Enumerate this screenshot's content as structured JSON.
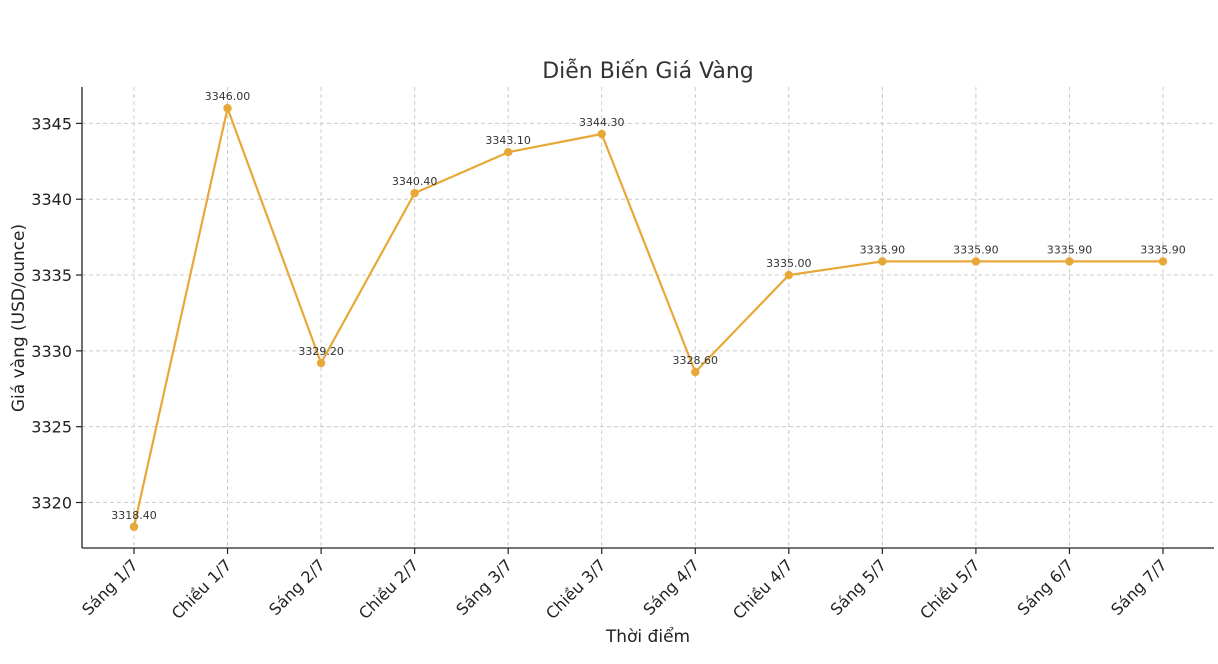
{
  "chart_data": {
    "type": "line",
    "title": "Diễn Biến Giá Vàng",
    "xlabel": "Thời điểm",
    "ylabel": "Giá vàng (USD/ounce)",
    "categories": [
      "Sáng 1/7",
      "Chiều 1/7",
      "Sáng 2/7",
      "Chiều 2/7",
      "Sáng 3/7",
      "Chiều 3/7",
      "Sáng 4/7",
      "Chiều 4/7",
      "Sáng 5/7",
      "Chiều 5/7",
      "Sáng 6/7",
      "Sáng 7/7"
    ],
    "series": [
      {
        "values": [
          3318.4,
          3346.0,
          3329.2,
          3340.4,
          3343.1,
          3344.3,
          3328.6,
          3335.0,
          3335.9,
          3335.9,
          3335.9,
          3335.9
        ],
        "data_labels": [
          "3318.40",
          "3346.00",
          "3329.20",
          "3340.40",
          "3343.10",
          "3344.30",
          "3328.60",
          "3335.00",
          "3335.90",
          "3335.90",
          "3335.90",
          "3335.90"
        ],
        "color": "#E8A838"
      }
    ],
    "yticks": [
      "3320",
      "3325",
      "3330",
      "3335",
      "3340",
      "3345"
    ],
    "ylim": [
      3317,
      3347.4
    ],
    "grid": true,
    "legend": "none"
  }
}
